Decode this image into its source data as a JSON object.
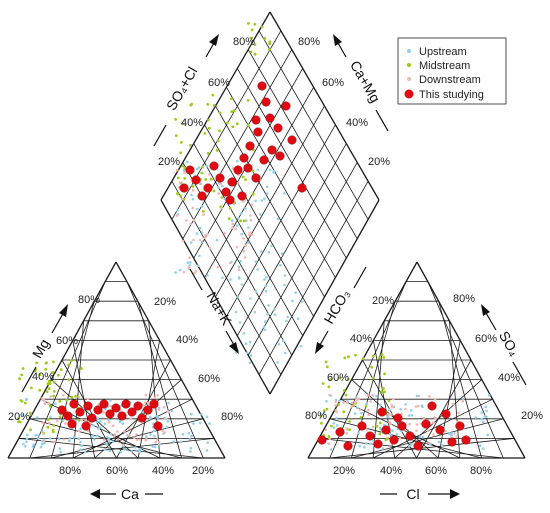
{
  "diagram": {
    "type": "piper",
    "legend": [
      {
        "label": "Upstream",
        "symbol": "small-dot",
        "color": "#8fd0ec"
      },
      {
        "label": "Midstream",
        "symbol": "small-dot",
        "color": "#9ccc1a"
      },
      {
        "label": "Downstream",
        "symbol": "small-dot",
        "color": "#f4b6b0"
      },
      {
        "label": "This studying",
        "symbol": "large-dot",
        "color": "#e00a12"
      }
    ],
    "left_triangle": {
      "axis_titles": {
        "mg": "Mg",
        "ca": "Ca"
      },
      "mg_ticks": [
        "20%",
        "40%",
        "60%",
        "80%"
      ],
      "ca_ticks": [
        "80%",
        "60%",
        "40%",
        "20%"
      ],
      "right_ticks": [
        "20%",
        "40%",
        "60%",
        "80%"
      ]
    },
    "right_triangle": {
      "axis_titles": {
        "so4": "SO₄",
        "cl": "Cl"
      },
      "left_ticks": [
        "80%",
        "60%",
        "40%",
        "20%"
      ],
      "cl_ticks": [
        "20%",
        "40%",
        "60%",
        "80%"
      ],
      "so4_ticks": [
        "80%",
        "60%",
        "40%",
        "20%"
      ]
    },
    "diamond": {
      "axis_titles": {
        "so4_cl": "SO₄+Cl",
        "ca_mg": "Ca+Mg",
        "na_k": "Na+K",
        "hco3": "HCO₃"
      },
      "upper_left_ticks": [
        "20%",
        "40%",
        "60%",
        "80%"
      ],
      "upper_right_ticks": [
        "80%",
        "60%",
        "40%",
        "20%"
      ]
    }
  },
  "colors": {
    "grid": "#1a1a1a",
    "upstream": "#8fd0ec",
    "midstream": "#9ccc1a",
    "downstream": "#f4b6b0",
    "this_study": "#e00a12"
  }
}
